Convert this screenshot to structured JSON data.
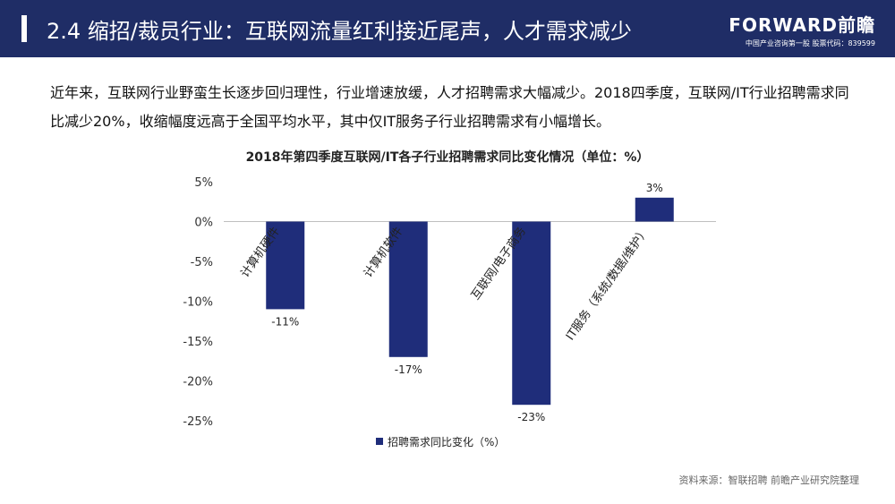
{
  "header": {
    "title": "2.4 缩招/裁员行业：互联网流量红利接近尾声，人才需求减少",
    "logo_brand": "FORWARD前瞻",
    "logo_tagline": "中国产业咨询第一股 股票代码：839599"
  },
  "intro": "近年来，互联网行业野蛮生长逐步回归理性，行业增速放缓，人才招聘需求大幅减少。2018四季度，互联网/IT行业招聘需求同比减少20%，收缩幅度远高于全国平均水平，其中仅IT服务子行业招聘需求有小幅增长。",
  "source": "资料来源：智联招聘 前瞻产业研究院整理",
  "colors": {
    "header_bg": "#1f2d66",
    "bar": "#1f2d7a"
  },
  "chart_data": {
    "type": "bar",
    "title": "2018年第四季度互联网/IT各子行业招聘需求同比变化情况（单位：%）",
    "categories": [
      "计算机硬件",
      "计算机软件",
      "互联网/电子商务",
      "IT服务（系统/数据/维护）"
    ],
    "series": [
      {
        "name": "招聘需求同比变化（%）",
        "values": [
          -11,
          -17,
          -23,
          3
        ]
      }
    ],
    "data_labels": [
      "-11%",
      "-17%",
      "-23%",
      "3%"
    ],
    "ylim": [
      -25,
      5
    ],
    "yticks": [
      5,
      0,
      -5,
      -10,
      -15,
      -20,
      -25
    ],
    "ytick_labels": [
      "5%",
      "0%",
      "-5%",
      "-10%",
      "-15%",
      "-20%",
      "-25%"
    ],
    "legend_position": "bottom",
    "grid": false
  }
}
